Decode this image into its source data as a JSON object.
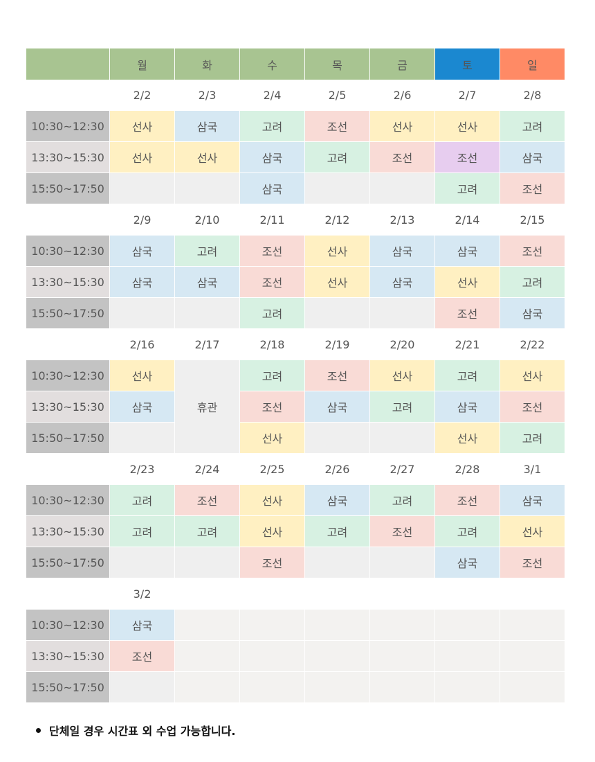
{
  "corner": "",
  "days": [
    "월",
    "화",
    "수",
    "목",
    "금",
    "토",
    "일"
  ],
  "weeks": [
    {
      "dates": [
        {
          "t": "2/2",
          "k": "n"
        },
        {
          "t": "2/3",
          "k": "n"
        },
        {
          "t": "2/4",
          "k": "n"
        },
        {
          "t": "2/5",
          "k": "n"
        },
        {
          "t": "2/6",
          "k": "n"
        },
        {
          "t": "2/7",
          "k": "sat"
        },
        {
          "t": "2/8",
          "k": "sun"
        }
      ],
      "slots": [
        {
          "time": "10:30~12:30",
          "cells": [
            "선사",
            "삼국",
            "고려",
            "조선",
            "선사",
            "선사",
            "고려"
          ]
        },
        {
          "time": "13:30~15:30",
          "cells": [
            "선사",
            "선사",
            "삼국",
            "고려",
            "조선",
            "조선*",
            "삼국"
          ]
        },
        {
          "time": "15:50~17:50",
          "cells": [
            "",
            "",
            "삼국",
            "",
            "",
            "고려",
            "조선"
          ]
        }
      ]
    },
    {
      "dates": [
        {
          "t": "2/9",
          "k": "n"
        },
        {
          "t": "2/10",
          "k": "n"
        },
        {
          "t": "2/11",
          "k": "n"
        },
        {
          "t": "2/12",
          "k": "n"
        },
        {
          "t": "2/13",
          "k": "n"
        },
        {
          "t": "2/14",
          "k": "sat"
        },
        {
          "t": "2/15",
          "k": "sun"
        }
      ],
      "slots": [
        {
          "time": "10:30~12:30",
          "cells": [
            "삼국",
            "고려",
            "조선",
            "선사",
            "삼국",
            "삼국",
            "조선"
          ]
        },
        {
          "time": "13:30~15:30",
          "cells": [
            "삼국",
            "삼국",
            "조선",
            "선사",
            "삼국",
            "선사",
            "고려"
          ]
        },
        {
          "time": "15:50~17:50",
          "cells": [
            "",
            "",
            "고려",
            "",
            "",
            "조선",
            "삼국"
          ]
        }
      ]
    },
    {
      "dates": [
        {
          "t": "2/16",
          "k": "hol"
        },
        {
          "t": "2/17",
          "k": "hol"
        },
        {
          "t": "2/18",
          "k": "hol"
        },
        {
          "t": "2/19",
          "k": "n"
        },
        {
          "t": "2/20",
          "k": "n"
        },
        {
          "t": "2/21",
          "k": "sat"
        },
        {
          "t": "2/22",
          "k": "sun"
        }
      ],
      "slots": [
        {
          "time": "10:30~12:30",
          "cells": [
            "선사",
            "휴관",
            "고려",
            "조선",
            "선사",
            "고려",
            "선사"
          ]
        },
        {
          "time": "13:30~15:30",
          "cells": [
            "삼국",
            null,
            "조선",
            "삼국",
            "고려",
            "삼국",
            "조선"
          ]
        },
        {
          "time": "15:50~17:50",
          "cells": [
            "",
            null,
            "선사",
            "",
            "",
            "선사",
            "고려"
          ]
        }
      ]
    },
    {
      "dates": [
        {
          "t": "2/23",
          "k": "n"
        },
        {
          "t": "2/24",
          "k": "n"
        },
        {
          "t": "2/25",
          "k": "n"
        },
        {
          "t": "2/26",
          "k": "n"
        },
        {
          "t": "2/27",
          "k": "n"
        },
        {
          "t": "2/28",
          "k": "sat"
        },
        {
          "t": "3/1",
          "k": "sun"
        }
      ],
      "slots": [
        {
          "time": "10:30~12:30",
          "cells": [
            "고려",
            "조선",
            "선사",
            "삼국",
            "고려",
            "조선",
            "삼국"
          ]
        },
        {
          "time": "13:30~15:30",
          "cells": [
            "고려",
            "고려",
            "선사",
            "고려",
            "조선",
            "고려",
            "선사"
          ]
        },
        {
          "time": "15:50~17:50",
          "cells": [
            "",
            "",
            "조선",
            "",
            "",
            "삼국",
            "조선"
          ]
        }
      ]
    },
    {
      "dates": [
        {
          "t": "3/2",
          "k": "hol"
        },
        {
          "t": "",
          "k": "n"
        },
        {
          "t": "",
          "k": "n"
        },
        {
          "t": "",
          "k": "n"
        },
        {
          "t": "",
          "k": "n"
        },
        {
          "t": "",
          "k": "n"
        },
        {
          "t": "",
          "k": "n"
        }
      ],
      "slots": [
        {
          "time": "10:30~12:30",
          "cells": [
            "삼국",
            "~",
            "~",
            "~",
            "~",
            "~",
            "~"
          ]
        },
        {
          "time": "13:30~15:30",
          "cells": [
            "조선",
            "~",
            "~",
            "~",
            "~",
            "~",
            "~"
          ]
        },
        {
          "time": "15:50~17:50",
          "cells": [
            "",
            "~",
            "~",
            "~",
            "~",
            "~",
            "~"
          ]
        }
      ]
    }
  ],
  "note": "단체일 경우 시간표 외 수업 가능합니다."
}
